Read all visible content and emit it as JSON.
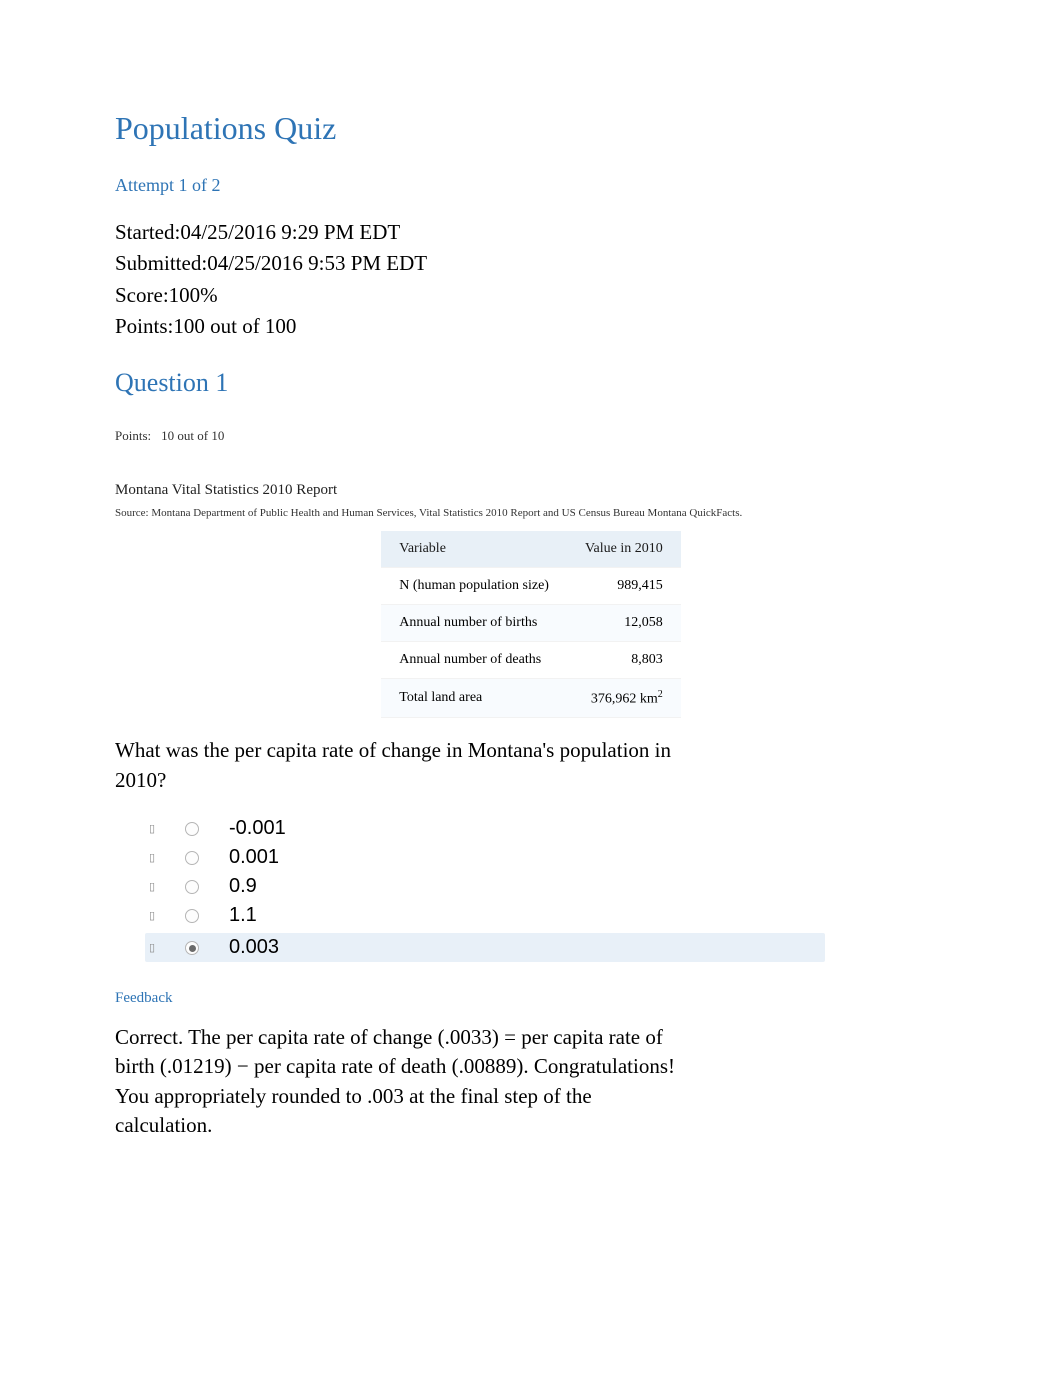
{
  "page": {
    "title": "Populations Quiz",
    "attempt_label": "Attempt 1 of 2"
  },
  "meta": {
    "started_label": "Started:",
    "started_value": "04/25/2016 9:29 PM EDT",
    "submitted_label": "Submitted:",
    "submitted_value": "04/25/2016 9:53 PM EDT",
    "score_label": "Score:",
    "score_value": "100%",
    "points_label": "Points:",
    "points_value": "100 out of 100"
  },
  "question": {
    "heading": "Question 1",
    "points_label": "Points:",
    "points_value": "10 out of 10",
    "report_title": "Montana Vital Statistics 2010 Report",
    "report_source": "Source: Montana Department of Public Health and Human Services, Vital Statistics 2010 Report and US Census Bureau Montana QuickFacts.",
    "prompt": "What was the per capita rate of change in Montana's population in 2010?"
  },
  "table": {
    "type": "table",
    "header_bg": "#e8f0f7",
    "row_alt_bg": "#f8fbfe",
    "border_color": "#f2f2f2",
    "columns": [
      {
        "label": "Variable",
        "align": "left"
      },
      {
        "label": "Value in 2010",
        "align": "right"
      }
    ],
    "rows": [
      {
        "variable": "N (human population size)",
        "value": "989,415"
      },
      {
        "variable": "Annual number of births",
        "value": "12,058"
      },
      {
        "variable": "Annual number of deaths",
        "value": "8,803"
      },
      {
        "variable": "Total land area",
        "value": "376,962 km",
        "value_sup": "2"
      }
    ]
  },
  "options": {
    "items": [
      {
        "text": "-0.001",
        "selected": false
      },
      {
        "text": "0.001",
        "selected": false
      },
      {
        "text": "0.9",
        "selected": false
      },
      {
        "text": "1.1",
        "selected": false
      },
      {
        "text": "0.003",
        "selected": true
      }
    ],
    "highlight_bg": "#e8f0f8",
    "bullet_color": "#8c8c8c",
    "radio_border": "#b5b5b5",
    "radio_fill": "#6a6a6a"
  },
  "feedback": {
    "heading": "Feedback",
    "text": "Correct. The per capita rate of change (.0033) = per capita rate of birth (.01219) − per capita rate of death (.00889). Congratulations! You appropriately rounded to .003 at the final step of the calculation."
  },
  "colors": {
    "accent": "#2e74b5",
    "text": "#000000",
    "background": "#ffffff"
  },
  "typography": {
    "title_fontsize": 32,
    "heading_fontsize": 26,
    "body_fontsize": 21,
    "small_fontsize": 15,
    "tiny_fontsize": 11,
    "accent_font": "Georgia, serif"
  }
}
